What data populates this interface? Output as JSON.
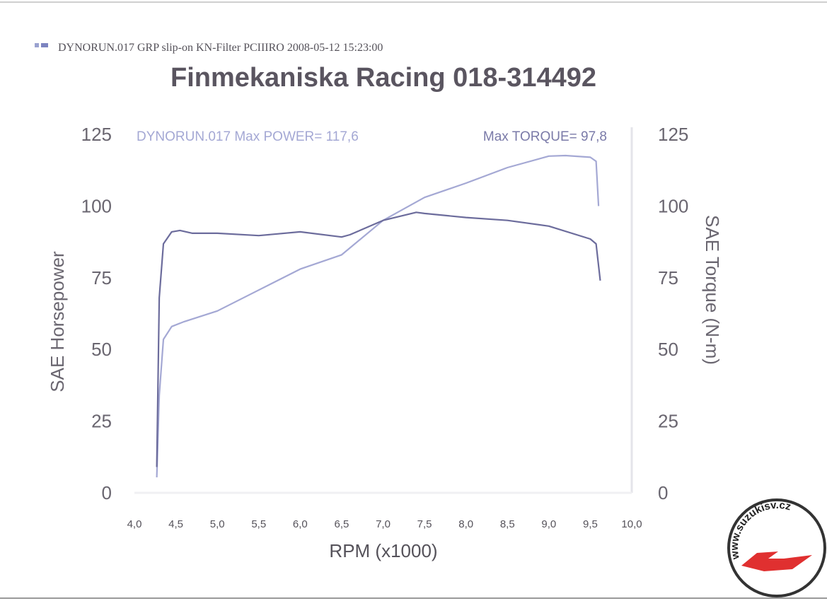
{
  "chart_data": {
    "type": "line",
    "legend_text": "DYNORUN.017  GRP slip-on KN-Filter PCIIIRO  2008-05-12 15:23:00",
    "title": "Finmekaniska Racing 018-314492",
    "annotations": [
      "DYNORUN.017  Max POWER= 117,6",
      "Max TORQUE= 97,8"
    ],
    "x_label": "RPM (x1000)",
    "y_label": "SAE Horsepower",
    "y2_label": "SAE Torque (N-m)",
    "watermark": "www.suzukisv.cz",
    "xlim": [
      4.0,
      10.0
    ],
    "xticks": [
      {
        "value": 4.0,
        "label": "4,0"
      },
      {
        "value": 4.5,
        "label": "4,5"
      },
      {
        "value": 5.0,
        "label": "5,0"
      },
      {
        "value": 5.5,
        "label": "5,5"
      },
      {
        "value": 6.0,
        "label": "6,0"
      },
      {
        "value": 6.5,
        "label": "6,5"
      },
      {
        "value": 7.0,
        "label": "7,0"
      },
      {
        "value": 7.5,
        "label": "7,5"
      },
      {
        "value": 8.0,
        "label": "8,0"
      },
      {
        "value": 8.5,
        "label": "8,5"
      },
      {
        "value": 9.0,
        "label": "9,0"
      },
      {
        "value": 9.5,
        "label": "9,5"
      },
      {
        "value": 10.0,
        "label": "10,0"
      }
    ],
    "ylim": [
      0,
      125
    ],
    "yticks": [
      0,
      25,
      50,
      75,
      100,
      125
    ],
    "y2lim": [
      0,
      125
    ],
    "y2ticks": [
      0,
      25,
      50,
      75,
      100,
      125
    ],
    "series": [
      {
        "color": "#a4a8d4",
        "x": [
          4.27,
          4.3,
          4.35,
          4.45,
          4.6,
          5.0,
          5.5,
          6.0,
          6.5,
          7.0,
          7.5,
          8.0,
          8.5,
          9.0,
          9.2,
          9.5,
          9.57,
          9.6
        ],
        "values": [
          5.4,
          34,
          53.5,
          58,
          59.7,
          63.4,
          70.7,
          78,
          83,
          95,
          103,
          108,
          113.4,
          117.4,
          117.6,
          117,
          115.6,
          100
        ]
      },
      {
        "color": "#6c6c9c",
        "axis": "y2",
        "x": [
          4.27,
          4.3,
          4.35,
          4.45,
          4.55,
          4.7,
          5.0,
          5.5,
          6.0,
          6.5,
          6.6,
          7.0,
          7.4,
          7.5,
          8.0,
          8.5,
          9.0,
          9.5,
          9.57,
          9.62
        ],
        "values": [
          9,
          68,
          86.8,
          91,
          91.5,
          90.5,
          90.5,
          89.7,
          91,
          89.2,
          90,
          95,
          97.8,
          97.4,
          96,
          95,
          93,
          88.5,
          86.8,
          74
        ]
      }
    ]
  }
}
